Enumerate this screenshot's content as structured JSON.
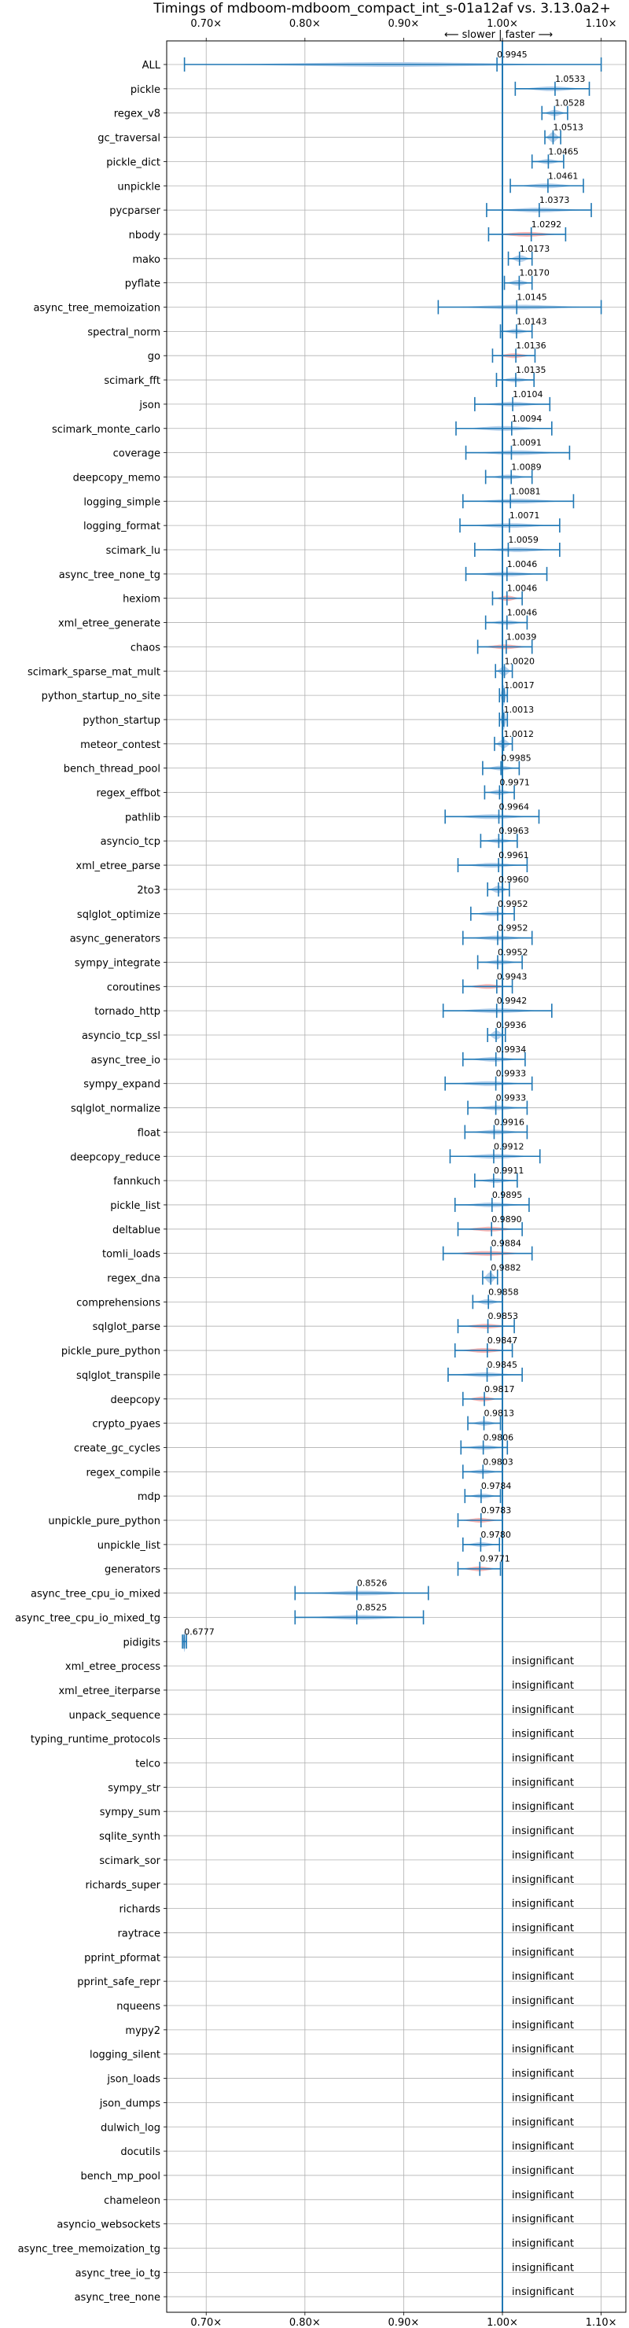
{
  "chart_data": {
    "type": "violin",
    "title": "Timings of mdboom-mdboom_compact_int_s-01a12af vs. 3.13.0a2+",
    "subtitle": "⟵ slower | faster ⟶",
    "xlim": [
      0.66,
      1.125
    ],
    "xticks": [
      {
        "value": 0.7,
        "label": "0.70×"
      },
      {
        "value": 0.8,
        "label": "0.80×"
      },
      {
        "value": 0.9,
        "label": "0.90×"
      },
      {
        "value": 1.0,
        "label": "1.00×"
      },
      {
        "value": 1.1,
        "label": "1.10×"
      }
    ],
    "grid": true,
    "reference_line": 1.0,
    "colors": {
      "faster": "#a8c8e8",
      "slower": "#f4a9a8",
      "line": "#1f77b4",
      "grid": "#b0b0b0"
    },
    "insignificant_label": "insignificant",
    "benchmarks": [
      {
        "name": "ALL",
        "mean": 0.9945,
        "min": 0.678,
        "max": 1.1,
        "color": "blue"
      },
      {
        "name": "pickle",
        "mean": 1.0533,
        "min": 1.013,
        "max": 1.088,
        "color": "blue"
      },
      {
        "name": "regex_v8",
        "mean": 1.0528,
        "min": 1.04,
        "max": 1.066,
        "color": "blue"
      },
      {
        "name": "gc_traversal",
        "mean": 1.0513,
        "min": 1.043,
        "max": 1.059,
        "color": "blue"
      },
      {
        "name": "pickle_dict",
        "mean": 1.0465,
        "min": 1.03,
        "max": 1.062,
        "color": "blue"
      },
      {
        "name": "unpickle",
        "mean": 1.0461,
        "min": 1.008,
        "max": 1.082,
        "color": "blue"
      },
      {
        "name": "pycparser",
        "mean": 1.0373,
        "min": 0.984,
        "max": 1.09,
        "color": "blue"
      },
      {
        "name": "nbody",
        "mean": 1.0292,
        "min": 0.986,
        "max": 1.064,
        "color": "red"
      },
      {
        "name": "mako",
        "mean": 1.0173,
        "min": 1.006,
        "max": 1.03,
        "color": "blue"
      },
      {
        "name": "pyflate",
        "mean": 1.017,
        "min": 1.002,
        "max": 1.03,
        "color": "blue"
      },
      {
        "name": "async_tree_memoization",
        "mean": 1.0145,
        "min": 0.935,
        "max": 1.1,
        "color": "blue"
      },
      {
        "name": "spectral_norm",
        "mean": 1.0143,
        "min": 0.998,
        "max": 1.03,
        "color": "blue"
      },
      {
        "name": "go",
        "mean": 1.0136,
        "min": 0.99,
        "max": 1.033,
        "color": "red"
      },
      {
        "name": "scimark_fft",
        "mean": 1.0135,
        "min": 0.994,
        "max": 1.032,
        "color": "blue"
      },
      {
        "name": "json",
        "mean": 1.0104,
        "min": 0.972,
        "max": 1.048,
        "color": "blue"
      },
      {
        "name": "scimark_monte_carlo",
        "mean": 1.0094,
        "min": 0.953,
        "max": 1.05,
        "color": "blue"
      },
      {
        "name": "coverage",
        "mean": 1.0091,
        "min": 0.963,
        "max": 1.068,
        "color": "blue"
      },
      {
        "name": "deepcopy_memo",
        "mean": 1.0089,
        "min": 0.983,
        "max": 1.03,
        "color": "blue"
      },
      {
        "name": "logging_simple",
        "mean": 1.0081,
        "min": 0.96,
        "max": 1.072,
        "color": "blue"
      },
      {
        "name": "logging_format",
        "mean": 1.0071,
        "min": 0.957,
        "max": 1.058,
        "color": "blue"
      },
      {
        "name": "scimark_lu",
        "mean": 1.0059,
        "min": 0.972,
        "max": 1.058,
        "color": "blue"
      },
      {
        "name": "async_tree_none_tg",
        "mean": 1.0046,
        "min": 0.963,
        "max": 1.045,
        "color": "blue"
      },
      {
        "name": "hexiom",
        "mean": 1.0046,
        "min": 0.99,
        "max": 1.02,
        "color": "red"
      },
      {
        "name": "xml_etree_generate",
        "mean": 1.0046,
        "min": 0.983,
        "max": 1.025,
        "color": "blue"
      },
      {
        "name": "chaos",
        "mean": 1.0039,
        "min": 0.975,
        "max": 1.03,
        "color": "red"
      },
      {
        "name": "scimark_sparse_mat_mult",
        "mean": 1.002,
        "min": 0.993,
        "max": 1.01,
        "color": "blue"
      },
      {
        "name": "python_startup_no_site",
        "mean": 1.0017,
        "min": 0.997,
        "max": 1.005,
        "color": "blue"
      },
      {
        "name": "python_startup",
        "mean": 1.0013,
        "min": 0.997,
        "max": 1.005,
        "color": "blue"
      },
      {
        "name": "meteor_contest",
        "mean": 1.0012,
        "min": 0.992,
        "max": 1.01,
        "color": "blue"
      },
      {
        "name": "bench_thread_pool",
        "mean": 0.9985,
        "min": 0.98,
        "max": 1.017,
        "color": "blue"
      },
      {
        "name": "regex_effbot",
        "mean": 0.9971,
        "min": 0.982,
        "max": 1.012,
        "color": "blue"
      },
      {
        "name": "pathlib",
        "mean": 0.9964,
        "min": 0.942,
        "max": 1.037,
        "color": "blue"
      },
      {
        "name": "asyncio_tcp",
        "mean": 0.9963,
        "min": 0.978,
        "max": 1.015,
        "color": "blue"
      },
      {
        "name": "xml_etree_parse",
        "mean": 0.9961,
        "min": 0.955,
        "max": 1.025,
        "color": "blue"
      },
      {
        "name": "2to3",
        "mean": 0.996,
        "min": 0.985,
        "max": 1.007,
        "color": "blue"
      },
      {
        "name": "sqlglot_optimize",
        "mean": 0.9952,
        "min": 0.968,
        "max": 1.012,
        "color": "blue"
      },
      {
        "name": "async_generators",
        "mean": 0.9952,
        "min": 0.96,
        "max": 1.03,
        "color": "blue"
      },
      {
        "name": "sympy_integrate",
        "mean": 0.9952,
        "min": 0.975,
        "max": 1.02,
        "color": "blue"
      },
      {
        "name": "coroutines",
        "mean": 0.9943,
        "min": 0.96,
        "max": 1.01,
        "color": "red"
      },
      {
        "name": "tornado_http",
        "mean": 0.9942,
        "min": 0.94,
        "max": 1.05,
        "color": "blue"
      },
      {
        "name": "asyncio_tcp_ssl",
        "mean": 0.9936,
        "min": 0.985,
        "max": 1.003,
        "color": "blue"
      },
      {
        "name": "async_tree_io",
        "mean": 0.9934,
        "min": 0.96,
        "max": 1.023,
        "color": "blue"
      },
      {
        "name": "sympy_expand",
        "mean": 0.9933,
        "min": 0.942,
        "max": 1.03,
        "color": "blue"
      },
      {
        "name": "sqlglot_normalize",
        "mean": 0.9933,
        "min": 0.965,
        "max": 1.025,
        "color": "blue"
      },
      {
        "name": "float",
        "mean": 0.9916,
        "min": 0.962,
        "max": 1.025,
        "color": "blue"
      },
      {
        "name": "deepcopy_reduce",
        "mean": 0.9912,
        "min": 0.947,
        "max": 1.038,
        "color": "blue"
      },
      {
        "name": "fannkuch",
        "mean": 0.9911,
        "min": 0.972,
        "max": 1.015,
        "color": "blue"
      },
      {
        "name": "pickle_list",
        "mean": 0.9895,
        "min": 0.952,
        "max": 1.027,
        "color": "blue"
      },
      {
        "name": "deltablue",
        "mean": 0.989,
        "min": 0.955,
        "max": 1.02,
        "color": "red"
      },
      {
        "name": "tomli_loads",
        "mean": 0.9884,
        "min": 0.94,
        "max": 1.03,
        "color": "red"
      },
      {
        "name": "regex_dna",
        "mean": 0.9882,
        "min": 0.98,
        "max": 0.995,
        "color": "blue"
      },
      {
        "name": "comprehensions",
        "mean": 0.9858,
        "min": 0.97,
        "max": 1.0,
        "color": "blue"
      },
      {
        "name": "sqlglot_parse",
        "mean": 0.9853,
        "min": 0.955,
        "max": 1.012,
        "color": "red"
      },
      {
        "name": "pickle_pure_python",
        "mean": 0.9847,
        "min": 0.952,
        "max": 1.01,
        "color": "red"
      },
      {
        "name": "sqlglot_transpile",
        "mean": 0.9845,
        "min": 0.945,
        "max": 1.02,
        "color": "blue"
      },
      {
        "name": "deepcopy",
        "mean": 0.9817,
        "min": 0.96,
        "max": 1.0,
        "color": "red"
      },
      {
        "name": "crypto_pyaes",
        "mean": 0.9813,
        "min": 0.965,
        "max": 0.998,
        "color": "blue"
      },
      {
        "name": "create_gc_cycles",
        "mean": 0.9806,
        "min": 0.958,
        "max": 1.005,
        "color": "blue"
      },
      {
        "name": "regex_compile",
        "mean": 0.9803,
        "min": 0.96,
        "max": 1.0,
        "color": "blue"
      },
      {
        "name": "mdp",
        "mean": 0.9784,
        "min": 0.962,
        "max": 0.998,
        "color": "blue"
      },
      {
        "name": "unpickle_pure_python",
        "mean": 0.9783,
        "min": 0.955,
        "max": 1.0,
        "color": "red"
      },
      {
        "name": "unpickle_list",
        "mean": 0.978,
        "min": 0.96,
        "max": 0.997,
        "color": "blue"
      },
      {
        "name": "generators",
        "mean": 0.9771,
        "min": 0.955,
        "max": 0.998,
        "color": "red"
      },
      {
        "name": "async_tree_cpu_io_mixed",
        "mean": 0.8526,
        "min": 0.79,
        "max": 0.925,
        "color": "blue"
      },
      {
        "name": "async_tree_cpu_io_mixed_tg",
        "mean": 0.8525,
        "min": 0.79,
        "max": 0.92,
        "color": "blue"
      },
      {
        "name": "pidigits",
        "mean": 0.6777,
        "min": 0.676,
        "max": 0.68,
        "color": "blue"
      },
      {
        "name": "xml_etree_process",
        "insignificant": true
      },
      {
        "name": "xml_etree_iterparse",
        "insignificant": true
      },
      {
        "name": "unpack_sequence",
        "insignificant": true
      },
      {
        "name": "typing_runtime_protocols",
        "insignificant": true
      },
      {
        "name": "telco",
        "insignificant": true
      },
      {
        "name": "sympy_str",
        "insignificant": true
      },
      {
        "name": "sympy_sum",
        "insignificant": true
      },
      {
        "name": "sqlite_synth",
        "insignificant": true
      },
      {
        "name": "scimark_sor",
        "insignificant": true
      },
      {
        "name": "richards_super",
        "insignificant": true
      },
      {
        "name": "richards",
        "insignificant": true
      },
      {
        "name": "raytrace",
        "insignificant": true
      },
      {
        "name": "pprint_pformat",
        "insignificant": true
      },
      {
        "name": "pprint_safe_repr",
        "insignificant": true
      },
      {
        "name": "nqueens",
        "insignificant": true
      },
      {
        "name": "mypy2",
        "insignificant": true
      },
      {
        "name": "logging_silent",
        "insignificant": true
      },
      {
        "name": "json_loads",
        "insignificant": true
      },
      {
        "name": "json_dumps",
        "insignificant": true
      },
      {
        "name": "dulwich_log",
        "insignificant": true
      },
      {
        "name": "docutils",
        "insignificant": true
      },
      {
        "name": "bench_mp_pool",
        "insignificant": true
      },
      {
        "name": "chameleon",
        "insignificant": true
      },
      {
        "name": "asyncio_websockets",
        "insignificant": true
      },
      {
        "name": "async_tree_memoization_tg",
        "insignificant": true
      },
      {
        "name": "async_tree_io_tg",
        "insignificant": true
      },
      {
        "name": "async_tree_none",
        "insignificant": true
      }
    ]
  }
}
